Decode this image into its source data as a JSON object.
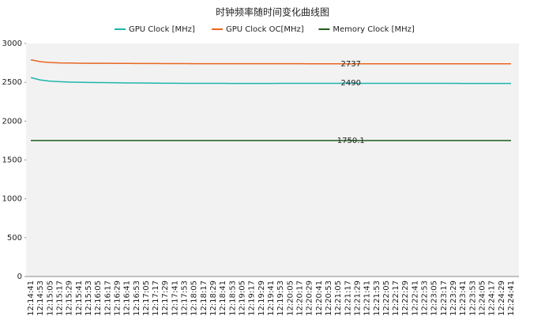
{
  "chart_data": {
    "type": "line",
    "title": "时钟频率随时间变化曲线图",
    "categories": [
      "12:14:41",
      "12:14:53",
      "12:15:05",
      "12:15:17",
      "12:15:29",
      "12:15:41",
      "12:15:53",
      "12:16:05",
      "12:16:17",
      "12:16:29",
      "12:16:41",
      "12:16:53",
      "12:17:05",
      "12:17:17",
      "12:17:29",
      "12:17:41",
      "12:17:53",
      "12:18:05",
      "12:18:17",
      "12:18:29",
      "12:18:41",
      "12:18:53",
      "12:19:05",
      "12:19:17",
      "12:19:29",
      "12:19:41",
      "12:19:53",
      "12:20:05",
      "12:20:17",
      "12:20:29",
      "12:20:41",
      "12:20:53",
      "12:21:05",
      "12:21:17",
      "12:21:29",
      "12:21:41",
      "12:21:53",
      "12:22:05",
      "12:22:17",
      "12:22:29",
      "12:22:41",
      "12:22:53",
      "12:23:05",
      "12:23:17",
      "12:23:29",
      "12:23:41",
      "12:23:53",
      "12:24:05",
      "12:24:17",
      "12:24:29",
      "12:24:41"
    ],
    "series": [
      {
        "name": "GPU Clock [MHz]",
        "color": "#1fb5ad",
        "values": [
          2560,
          2530,
          2515,
          2508,
          2503,
          2500,
          2498,
          2497,
          2495,
          2494,
          2492,
          2491,
          2490,
          2489,
          2488,
          2488,
          2487,
          2487,
          2486,
          2486,
          2486,
          2485,
          2485,
          2485,
          2485,
          2485,
          2486,
          2486,
          2486,
          2486,
          2486,
          2487,
          2487,
          2490,
          2487,
          2487,
          2486,
          2486,
          2486,
          2486,
          2486,
          2486,
          2486,
          2486,
          2486,
          2485,
          2485,
          2485,
          2485,
          2485,
          2485
        ],
        "value_labels": [
          null,
          null,
          null,
          null,
          null,
          null,
          null,
          null,
          null,
          null,
          null,
          null,
          null,
          null,
          null,
          null,
          null,
          null,
          null,
          null,
          null,
          null,
          null,
          null,
          null,
          null,
          null,
          null,
          null,
          null,
          null,
          null,
          null,
          "2490",
          null,
          null,
          null,
          null,
          null,
          null,
          null,
          null,
          null,
          null,
          null,
          null,
          null,
          null,
          null,
          null,
          null
        ]
      },
      {
        "name": "GPU Clock OC[MHz]",
        "color": "#e8661f",
        "values": [
          2790,
          2765,
          2755,
          2750,
          2748,
          2746,
          2745,
          2744,
          2744,
          2743,
          2743,
          2742,
          2742,
          2742,
          2741,
          2741,
          2741,
          2740,
          2740,
          2740,
          2740,
          2740,
          2740,
          2739,
          2739,
          2739,
          2739,
          2739,
          2739,
          2738,
          2738,
          2738,
          2738,
          2737,
          2738,
          2738,
          2738,
          2738,
          2738,
          2738,
          2738,
          2738,
          2738,
          2738,
          2738,
          2738,
          2738,
          2738,
          2738,
          2738,
          2738
        ],
        "value_labels": [
          null,
          null,
          null,
          null,
          null,
          null,
          null,
          null,
          null,
          null,
          null,
          null,
          null,
          null,
          null,
          null,
          null,
          null,
          null,
          null,
          null,
          null,
          null,
          null,
          null,
          null,
          null,
          null,
          null,
          null,
          null,
          null,
          null,
          "2737",
          null,
          null,
          null,
          null,
          null,
          null,
          null,
          null,
          null,
          null,
          null,
          null,
          null,
          null,
          null,
          null,
          null
        ]
      },
      {
        "name": "Memory Clock [MHz]",
        "color": "#1e5e1e",
        "values": [
          1750.1,
          1750.1,
          1750.1,
          1750.1,
          1750.1,
          1750.1,
          1750.1,
          1750.1,
          1750.1,
          1750.1,
          1750.1,
          1750.1,
          1750.1,
          1750.1,
          1750.1,
          1750.1,
          1750.1,
          1750.1,
          1750.1,
          1750.1,
          1750.1,
          1750.1,
          1750.1,
          1750.1,
          1750.1,
          1750.1,
          1750.1,
          1750.1,
          1750.1,
          1750.1,
          1750.1,
          1750.1,
          1750.1,
          1750.1,
          1750.1,
          1750.1,
          1750.1,
          1750.1,
          1750.1,
          1750.1,
          1750.1,
          1750.1,
          1750.1,
          1750.1,
          1750.1,
          1750.1,
          1750.1,
          1750.1,
          1750.1,
          1750.1,
          1750.1
        ],
        "value_labels": [
          null,
          null,
          null,
          null,
          null,
          null,
          null,
          null,
          null,
          null,
          null,
          null,
          null,
          null,
          null,
          null,
          null,
          null,
          null,
          null,
          null,
          null,
          null,
          null,
          null,
          null,
          null,
          null,
          null,
          null,
          null,
          null,
          null,
          "1750.1",
          null,
          null,
          null,
          null,
          null,
          null,
          null,
          null,
          null,
          null,
          null,
          null,
          null,
          null,
          null,
          null,
          null
        ]
      }
    ],
    "ylim": [
      0,
      3000
    ],
    "yticks": [
      0,
      500,
      1000,
      1500,
      2000,
      2500,
      3000
    ],
    "grid": false,
    "legend": "top"
  }
}
